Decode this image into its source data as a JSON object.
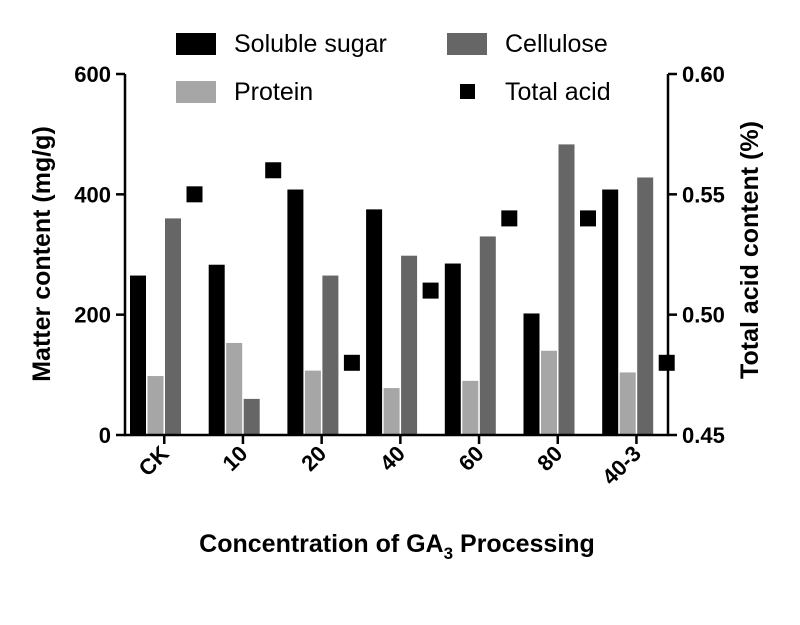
{
  "chart_data": {
    "type": "bar",
    "categories": [
      "CK",
      "10",
      "20",
      "40",
      "60",
      "80",
      "40-3"
    ],
    "series": [
      {
        "name": "Soluble sugar",
        "axis": "left",
        "kind": "bar",
        "color": "#000000",
        "values": [
          265,
          283,
          408,
          375,
          285,
          202,
          408
        ]
      },
      {
        "name": "Protein",
        "axis": "left",
        "kind": "bar",
        "color": "#a6a6a6",
        "values": [
          98,
          153,
          107,
          78,
          90,
          140,
          104
        ]
      },
      {
        "name": "Cellulose",
        "axis": "left",
        "kind": "bar",
        "color": "#666666",
        "values": [
          360,
          60,
          265,
          298,
          330,
          483,
          428
        ]
      },
      {
        "name": "Total acid",
        "axis": "right",
        "kind": "marker",
        "color": "#000000",
        "values": [
          0.55,
          0.56,
          0.48,
          0.51,
          0.54,
          0.54,
          0.48
        ]
      }
    ],
    "xlabel_main": "Concentration of GA",
    "xlabel_sub": "3",
    "xlabel_tail": " Processing",
    "ylabel": "Matter content (mg/g)",
    "y2label": "Total acid content (%)",
    "ylim": [
      0,
      600
    ],
    "yticks": [
      "0",
      "200",
      "400",
      "600"
    ],
    "y2lim": [
      0.45,
      0.6
    ],
    "y2ticks": [
      "0.45",
      "0.50",
      "0.55",
      "0.60"
    ],
    "legend_position": "top",
    "grid": false
  }
}
